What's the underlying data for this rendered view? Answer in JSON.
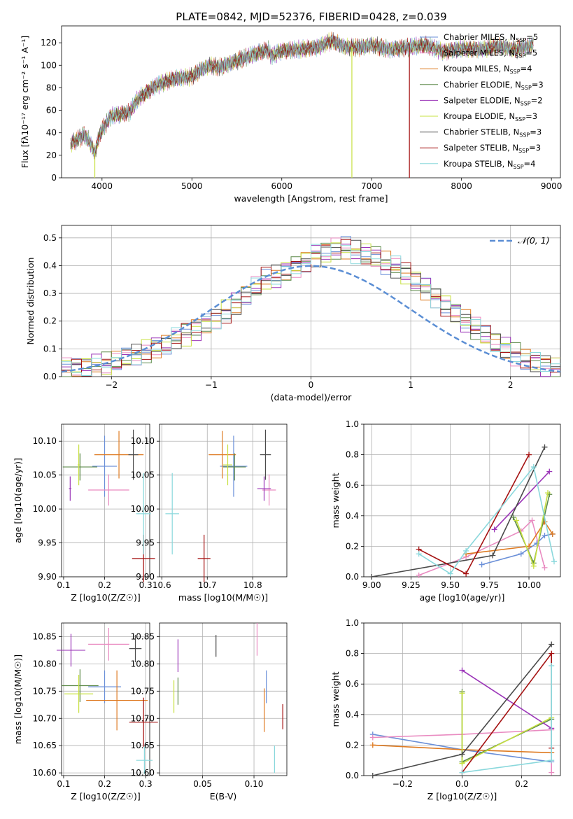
{
  "colors": {
    "Chabrier MILES": "#6a8fd8",
    "Salpeter MILES": "#e98bc1",
    "Kroupa MILES": "#de7a21",
    "Chabrier ELODIE": "#5d8a4a",
    "Salpeter ELODIE": "#9b35b8",
    "Kroupa ELODIE": "#c7e040",
    "Chabrier STELIB": "#4a4a4a",
    "Salpeter STELIB": "#a51212",
    "Kroupa STELIB": "#8ad8dc",
    "normal": "#5b8ed4",
    "grid": "#b0b0b0"
  },
  "chart_data": [
    {
      "id": "spectrum",
      "type": "line",
      "title": "PLATE=0842, MJD=52376, FIBERID=0428, z=0.039",
      "xlabel": "wavelength [Angstrom, rest frame]",
      "ylabel": "Flux [fλ10⁻¹⁷ erg cm⁻² s⁻¹ A⁻¹]",
      "xlim": [
        3550,
        9100
      ],
      "ylim": [
        0,
        135
      ],
      "xticks": [
        4000,
        5000,
        6000,
        7000,
        8000,
        9000
      ],
      "yticks": [
        0,
        20,
        40,
        60,
        80,
        100,
        120
      ],
      "legend_position": "right",
      "envelope": [
        [
          3650,
          30
        ],
        [
          3800,
          38
        ],
        [
          3850,
          34
        ],
        [
          3920,
          22
        ],
        [
          3980,
          40
        ],
        [
          4100,
          55
        ],
        [
          4300,
          58
        ],
        [
          4400,
          70
        ],
        [
          4600,
          82
        ],
        [
          4800,
          88
        ],
        [
          5000,
          90
        ],
        [
          5100,
          96
        ],
        [
          5200,
          100
        ],
        [
          5300,
          98
        ],
        [
          5500,
          104
        ],
        [
          5700,
          110
        ],
        [
          5850,
          114
        ],
        [
          5880,
          108
        ],
        [
          6000,
          113
        ],
        [
          6200,
          114
        ],
        [
          6400,
          116
        ],
        [
          6560,
          122
        ],
        [
          6700,
          116
        ],
        [
          6900,
          116
        ],
        [
          7000,
          118
        ],
        [
          7200,
          114
        ],
        [
          7400,
          116
        ],
        [
          7600,
          118
        ],
        [
          7800,
          112
        ],
        [
          8000,
          115
        ],
        [
          8200,
          114
        ],
        [
          8400,
          117
        ],
        [
          8600,
          114
        ],
        [
          8800,
          118
        ]
      ],
      "spikes": [
        {
          "series": "Kroupa ELODIE",
          "x": 3920
        },
        {
          "series": "Kroupa ELODIE",
          "x": 6780
        },
        {
          "series": "Salpeter STELIB",
          "x": 7420
        }
      ],
      "series": [
        {
          "name": "Chabrier MILES",
          "label": "Chabrier MILES, N",
          "sub": "SSP",
          "n": "=5"
        },
        {
          "name": "Salpeter MILES",
          "label": "Salpeter MILES, N",
          "sub": "SSP",
          "n": "=5"
        },
        {
          "name": "Kroupa MILES",
          "label": "Kroupa MILES, N",
          "sub": "SSP",
          "n": "=4"
        },
        {
          "name": "Chabrier ELODIE",
          "label": "Chabrier ELODIE, N",
          "sub": "SSP",
          "n": "=3"
        },
        {
          "name": "Salpeter ELODIE",
          "label": "Salpeter ELODIE, N",
          "sub": "SSP",
          "n": "=2"
        },
        {
          "name": "Kroupa ELODIE",
          "label": "Kroupa ELODIE, N",
          "sub": "SSP",
          "n": "=3"
        },
        {
          "name": "Chabrier STELIB",
          "label": "Chabrier STELIB, N",
          "sub": "SSP",
          "n": "=3"
        },
        {
          "name": "Salpeter STELIB",
          "label": "Salpeter STELIB, N",
          "sub": "SSP",
          "n": "=3"
        },
        {
          "name": "Kroupa STELIB",
          "label": "Kroupa STELIB, N",
          "sub": "SSP",
          "n": "=4"
        }
      ]
    },
    {
      "id": "residuals",
      "type": "step histogram",
      "xlabel": "(data-model)/error",
      "ylabel": "Normed distribution",
      "xlim": [
        -2.5,
        2.5
      ],
      "ylim": [
        0,
        0.545
      ],
      "xticks": [
        -2,
        -1,
        0,
        1,
        2
      ],
      "yticks": [
        0.0,
        0.1,
        0.2,
        0.3,
        0.4,
        0.5
      ],
      "grid": true,
      "legend_label": "𝒩(0, 1)",
      "legend_position": "top-right",
      "bin_width": 0.1,
      "reference_profile": [
        0.03,
        0.033,
        0.036,
        0.04,
        0.045,
        0.055,
        0.065,
        0.075,
        0.09,
        0.105,
        0.12,
        0.14,
        0.155,
        0.17,
        0.19,
        0.21,
        0.235,
        0.26,
        0.29,
        0.32,
        0.35,
        0.36,
        0.38,
        0.4,
        0.42,
        0.44,
        0.45,
        0.46,
        0.46,
        0.45,
        0.44,
        0.43,
        0.41,
        0.39,
        0.37,
        0.345,
        0.32,
        0.29,
        0.26,
        0.23,
        0.2,
        0.17,
        0.145,
        0.12,
        0.1,
        0.08,
        0.065,
        0.05,
        0.04,
        0.032
      ]
    },
    {
      "id": "age_vs_Z",
      "type": "errorbar",
      "xlabel": "Z [log10(Z/Z☉)]",
      "ylabel": "age  [log10(age/yr)]",
      "xlim": [
        0.095,
        0.31
      ],
      "ylim": [
        9.9,
        10.125
      ],
      "xticks": [
        0.1,
        0.2,
        0.3
      ],
      "yticks": [
        9.9,
        9.95,
        10.0,
        10.05,
        10.1
      ],
      "points": [
        {
          "series": "Chabrier MILES",
          "x": 0.2,
          "y": 10.063,
          "xerr": 0.03,
          "yerr": 0.045
        },
        {
          "series": "Salpeter MILES",
          "x": 0.21,
          "y": 10.028,
          "xerr": 0.05,
          "yerr": 0.023
        },
        {
          "series": "Kroupa MILES",
          "x": 0.235,
          "y": 10.08,
          "xerr": 0.06,
          "yerr": 0.035
        },
        {
          "series": "Chabrier ELODIE",
          "x": 0.14,
          "y": 10.062,
          "xerr": 0.042,
          "yerr": 0.02
        },
        {
          "series": "Salpeter ELODIE",
          "x": 0.116,
          "y": 10.03,
          "xerr": 0.003,
          "yerr": 0.018
        },
        {
          "series": "Kroupa ELODIE",
          "x": 0.137,
          "y": 10.065,
          "xerr": 0.003,
          "yerr": 0.03
        },
        {
          "series": "Chabrier STELIB",
          "x": 0.27,
          "y": 10.08,
          "xerr": 0.012,
          "yerr": 0.037
        },
        {
          "series": "Salpeter STELIB",
          "x": 0.295,
          "y": 9.927,
          "xerr": 0.028,
          "yerr": 0.035
        },
        {
          "series": "Kroupa STELIB",
          "x": 0.295,
          "y": 9.993,
          "xerr": 0.018,
          "yerr": 0.06
        }
      ]
    },
    {
      "id": "age_vs_mass",
      "type": "errorbar",
      "xlabel": "mass [log10(M/M☉)]",
      "ylabel": "",
      "xlim": [
        10.595,
        10.875
      ],
      "ylim": [
        9.9,
        10.125
      ],
      "xticks": [
        10.6,
        10.7,
        10.8
      ],
      "yticks": [
        9.9,
        9.95,
        10.0,
        10.05,
        10.1
      ],
      "points": [
        {
          "series": "Chabrier MILES",
          "x": 10.758,
          "y": 10.063,
          "xerr": 0.03,
          "yerr": 0.045
        },
        {
          "series": "Salpeter MILES",
          "x": 10.836,
          "y": 10.028,
          "xerr": 0.015,
          "yerr": 0.023
        },
        {
          "series": "Kroupa MILES",
          "x": 10.733,
          "y": 10.08,
          "xerr": 0.03,
          "yerr": 0.035
        },
        {
          "series": "Chabrier ELODIE",
          "x": 10.76,
          "y": 10.062,
          "xerr": 0.025,
          "yerr": 0.02
        },
        {
          "series": "Salpeter ELODIE",
          "x": 10.825,
          "y": 10.03,
          "xerr": 0.015,
          "yerr": 0.018
        },
        {
          "series": "Kroupa ELODIE",
          "x": 10.745,
          "y": 10.065,
          "xerr": 0.01,
          "yerr": 0.03
        },
        {
          "series": "Chabrier STELIB",
          "x": 10.828,
          "y": 10.08,
          "xerr": 0.012,
          "yerr": 0.037
        },
        {
          "series": "Salpeter STELIB",
          "x": 10.693,
          "y": 9.927,
          "xerr": 0.014,
          "yerr": 0.035
        },
        {
          "series": "Kroupa STELIB",
          "x": 10.623,
          "y": 9.993,
          "xerr": 0.015,
          "yerr": 0.06
        }
      ]
    },
    {
      "id": "weight_vs_age",
      "type": "line",
      "xlabel": "age  [log10(age/yr)]",
      "ylabel": "mass weight",
      "xlim": [
        8.95,
        10.2
      ],
      "ylim": [
        0,
        1.0
      ],
      "xticks": [
        9.0,
        9.25,
        9.5,
        9.75,
        10.0
      ],
      "yticks": [
        0.0,
        0.2,
        0.4,
        0.6,
        0.8,
        1.0
      ],
      "series": [
        {
          "name": "Chabrier MILES",
          "points": [
            [
              9.7,
              0.08
            ],
            [
              9.95,
              0.15
            ],
            [
              10.05,
              0.22
            ],
            [
              10.1,
              0.27
            ],
            [
              10.15,
              0.28
            ]
          ]
        },
        {
          "name": "Salpeter MILES",
          "points": [
            [
              9.3,
              0.01
            ],
            [
              9.6,
              0.13
            ],
            [
              9.95,
              0.3
            ],
            [
              10.02,
              0.37
            ],
            [
              10.1,
              0.06
            ]
          ]
        },
        {
          "name": "Kroupa MILES",
          "points": [
            [
              9.6,
              0.15
            ],
            [
              10.0,
              0.2
            ],
            [
              10.1,
              0.36
            ],
            [
              10.15,
              0.28
            ]
          ]
        },
        {
          "name": "Chabrier ELODIE",
          "points": [
            [
              9.9,
              0.39
            ],
            [
              10.03,
              0.09
            ],
            [
              10.13,
              0.54
            ]
          ]
        },
        {
          "name": "Salpeter ELODIE",
          "points": [
            [
              9.78,
              0.31
            ],
            [
              10.13,
              0.69
            ]
          ]
        },
        {
          "name": "Kroupa ELODIE",
          "points": [
            [
              9.92,
              0.37
            ],
            [
              10.03,
              0.07
            ],
            [
              10.12,
              0.55
            ]
          ]
        },
        {
          "name": "Chabrier STELIB",
          "points": [
            [
              9.0,
              0.0
            ],
            [
              9.77,
              0.14
            ],
            [
              10.1,
              0.85
            ]
          ]
        },
        {
          "name": "Salpeter STELIB",
          "points": [
            [
              9.3,
              0.18
            ],
            [
              9.6,
              0.02
            ],
            [
              10.0,
              0.8
            ]
          ]
        },
        {
          "name": "Kroupa STELIB",
          "points": [
            [
              9.3,
              0.15
            ],
            [
              9.5,
              0.02
            ],
            [
              9.6,
              0.17
            ],
            [
              10.03,
              0.72
            ],
            [
              10.16,
              0.1
            ]
          ]
        }
      ]
    },
    {
      "id": "mass_vs_Z",
      "type": "errorbar",
      "xlabel": "Z [log10(Z/Z☉)]",
      "ylabel": "mass [log10(M/M☉)]",
      "xlim": [
        0.095,
        0.31
      ],
      "ylim": [
        10.595,
        10.875
      ],
      "xticks": [
        0.1,
        0.2,
        0.3
      ],
      "yticks": [
        10.6,
        10.65,
        10.7,
        10.75,
        10.8,
        10.85
      ],
      "points": [
        {
          "series": "Chabrier MILES",
          "x": 0.2,
          "y": 10.758,
          "xerr": 0.04,
          "yerr": 0.03
        },
        {
          "series": "Salpeter MILES",
          "x": 0.21,
          "y": 10.836,
          "xerr": 0.05,
          "yerr": 0.03
        },
        {
          "series": "Kroupa MILES",
          "x": 0.23,
          "y": 10.733,
          "xerr": 0.075,
          "yerr": 0.055
        },
        {
          "series": "Chabrier ELODIE",
          "x": 0.14,
          "y": 10.76,
          "xerr": 0.045,
          "yerr": 0.03
        },
        {
          "series": "Salpeter ELODIE",
          "x": 0.118,
          "y": 10.825,
          "xerr": 0.035,
          "yerr": 0.03
        },
        {
          "series": "Kroupa ELODIE",
          "x": 0.137,
          "y": 10.745,
          "xerr": 0.035,
          "yerr": 0.035
        },
        {
          "series": "Chabrier STELIB",
          "x": 0.275,
          "y": 10.828,
          "xerr": 0.015,
          "yerr": 0.025
        },
        {
          "series": "Salpeter STELIB",
          "x": 0.295,
          "y": 10.693,
          "xerr": 0.035,
          "yerr": 0.045
        },
        {
          "series": "Kroupa STELIB",
          "x": 0.297,
          "y": 10.623,
          "xerr": 0.02,
          "yerr": 0.025
        }
      ]
    },
    {
      "id": "mass_vs_ebv",
      "type": "errorbar",
      "xlabel": "E(B-V)",
      "ylabel": "",
      "xlim": [
        0.008,
        0.132
      ],
      "ylim": [
        10.595,
        10.875
      ],
      "xticks": [
        0.05,
        0.1
      ],
      "yticks": [
        10.6,
        10.65,
        10.7,
        10.75,
        10.8,
        10.85
      ],
      "points": [
        {
          "series": "Chabrier MILES",
          "x": 0.112,
          "y": 10.758,
          "xerr": 0.0,
          "yerr": 0.03
        },
        {
          "series": "Salpeter MILES",
          "x": 0.103,
          "y": 10.845,
          "xerr": 0.0,
          "yerr": 0.03
        },
        {
          "series": "Kroupa MILES",
          "x": 0.11,
          "y": 10.715,
          "xerr": 0.0,
          "yerr": 0.04
        },
        {
          "series": "Chabrier ELODIE",
          "x": 0.026,
          "y": 10.75,
          "xerr": 0.0,
          "yerr": 0.025
        },
        {
          "series": "Salpeter ELODIE",
          "x": 0.026,
          "y": 10.815,
          "xerr": 0.0,
          "yerr": 0.03
        },
        {
          "series": "Kroupa ELODIE",
          "x": 0.022,
          "y": 10.74,
          "xerr": 0.0,
          "yerr": 0.03
        },
        {
          "series": "Chabrier STELIB",
          "x": 0.063,
          "y": 10.833,
          "xerr": 0.0,
          "yerr": 0.02
        },
        {
          "series": "Salpeter STELIB",
          "x": 0.128,
          "y": 10.703,
          "xerr": 0.0,
          "yerr": 0.023
        },
        {
          "series": "Kroupa STELIB",
          "x": 0.12,
          "y": 10.625,
          "xerr": 0.0,
          "yerr": 0.025
        }
      ]
    },
    {
      "id": "weight_vs_Z",
      "type": "line",
      "xlabel": "Z [log10(Z/Z☉)]",
      "ylabel": "mass weight",
      "xlim": [
        -0.33,
        0.33
      ],
      "ylim": [
        0,
        1.0
      ],
      "xticks": [
        -0.2,
        0.0,
        0.2
      ],
      "yticks": [
        0.0,
        0.2,
        0.4,
        0.6,
        0.8,
        1.0
      ],
      "series": [
        {
          "name": "Chabrier MILES",
          "points": [
            [
              -0.3,
              0.27
            ],
            [
              0.0,
              0.17
            ],
            [
              0.3,
              0.09
            ]
          ]
        },
        {
          "name": "Salpeter MILES",
          "points": [
            [
              -0.3,
              0.25
            ],
            [
              0.0,
              0.27
            ],
            [
              0.3,
              0.3
            ],
            [
              0.3,
              0.02
            ]
          ]
        },
        {
          "name": "Kroupa MILES",
          "points": [
            [
              -0.3,
              0.2
            ],
            [
              0.0,
              0.17
            ],
            [
              0.3,
              0.15
            ]
          ]
        },
        {
          "name": "Chabrier ELODIE",
          "points": [
            [
              0.0,
              0.55
            ],
            [
              0.0,
              0.09
            ],
            [
              0.3,
              0.37
            ]
          ]
        },
        {
          "name": "Salpeter ELODIE",
          "points": [
            [
              0.0,
              0.69
            ],
            [
              0.3,
              0.31
            ]
          ]
        },
        {
          "name": "Kroupa ELODIE",
          "points": [
            [
              0.0,
              0.54
            ],
            [
              0.0,
              0.08
            ],
            [
              0.3,
              0.38
            ]
          ]
        },
        {
          "name": "Chabrier STELIB",
          "points": [
            [
              -0.3,
              0.0
            ],
            [
              0.0,
              0.14
            ],
            [
              0.3,
              0.86
            ]
          ]
        },
        {
          "name": "Salpeter STELIB",
          "points": [
            [
              0.0,
              0.02
            ],
            [
              0.3,
              0.8
            ],
            [
              0.3,
              0.18
            ]
          ]
        },
        {
          "name": "Kroupa STELIB",
          "points": [
            [
              0.0,
              0.02
            ],
            [
              0.3,
              0.1
            ],
            [
              0.3,
              0.72
            ]
          ]
        }
      ]
    }
  ]
}
